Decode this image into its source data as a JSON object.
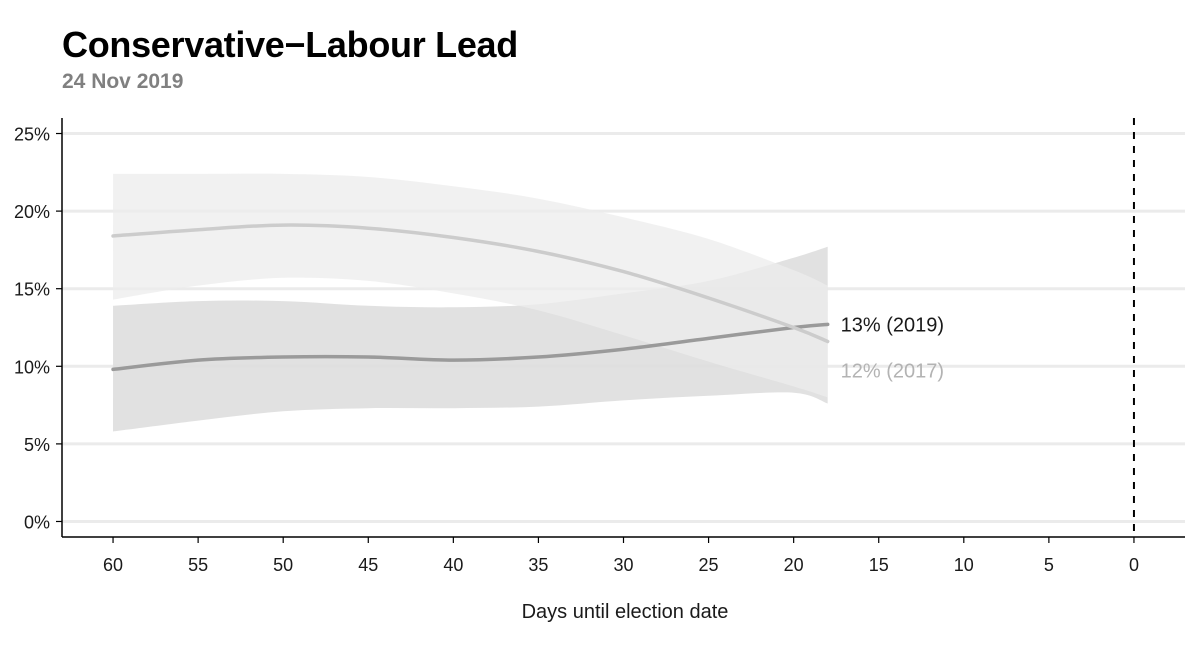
{
  "header": {
    "title": "Conservative−Labour Lead",
    "subtitle": "24 Nov 2019"
  },
  "chart_data": {
    "type": "line",
    "title": "Conservative−Labour Lead",
    "subtitle": "24 Nov 2019",
    "xlabel": "Days until election date",
    "ylabel": "",
    "xlim": [
      63,
      -3
    ],
    "ylim": [
      -1,
      26
    ],
    "x_reversed": true,
    "grid": "horizontal",
    "x_ticks": [
      60,
      55,
      50,
      45,
      40,
      35,
      30,
      25,
      20,
      15,
      10,
      5,
      0
    ],
    "x_tick_labels": [
      "60",
      "55",
      "50",
      "45",
      "40",
      "35",
      "30",
      "25",
      "20",
      "15",
      "10",
      "5",
      "0"
    ],
    "y_ticks": [
      0,
      5,
      10,
      15,
      20,
      25
    ],
    "y_tick_labels": [
      "0%",
      "5%",
      "10%",
      "15%",
      "20%",
      "25%"
    ],
    "reference_line": {
      "x": 0,
      "style": "dashed"
    },
    "series": [
      {
        "end_label": "13% (2019)",
        "color": "#9a9a9a",
        "label_color": "#1a1a1a",
        "x": [
          60,
          55,
          50,
          45,
          40,
          35,
          30,
          25,
          20,
          18
        ],
        "y": [
          9.8,
          10.4,
          10.6,
          10.6,
          10.4,
          10.6,
          11.1,
          11.8,
          12.5,
          12.7
        ],
        "lower": [
          5.8,
          6.5,
          7.1,
          7.3,
          7.3,
          7.4,
          7.8,
          8.1,
          8.3,
          7.6
        ],
        "upper": [
          13.9,
          14.2,
          14.2,
          13.9,
          13.8,
          14.0,
          14.7,
          15.5,
          17.0,
          17.7
        ]
      },
      {
        "end_label": "12% (2017)",
        "color": "#cccccc",
        "label_color": "#b3b3b3",
        "x": [
          60,
          55,
          50,
          45,
          40,
          35,
          30,
          25,
          20,
          18
        ],
        "y": [
          18.4,
          18.8,
          19.1,
          18.9,
          18.3,
          17.4,
          16.1,
          14.4,
          12.5,
          11.6
        ],
        "lower": [
          14.3,
          15.2,
          15.7,
          15.5,
          14.7,
          13.6,
          12.0,
          10.3,
          8.7,
          8.0
        ],
        "upper": [
          22.4,
          22.4,
          22.4,
          22.2,
          21.6,
          20.8,
          19.6,
          18.2,
          16.2,
          15.2
        ]
      }
    ]
  }
}
